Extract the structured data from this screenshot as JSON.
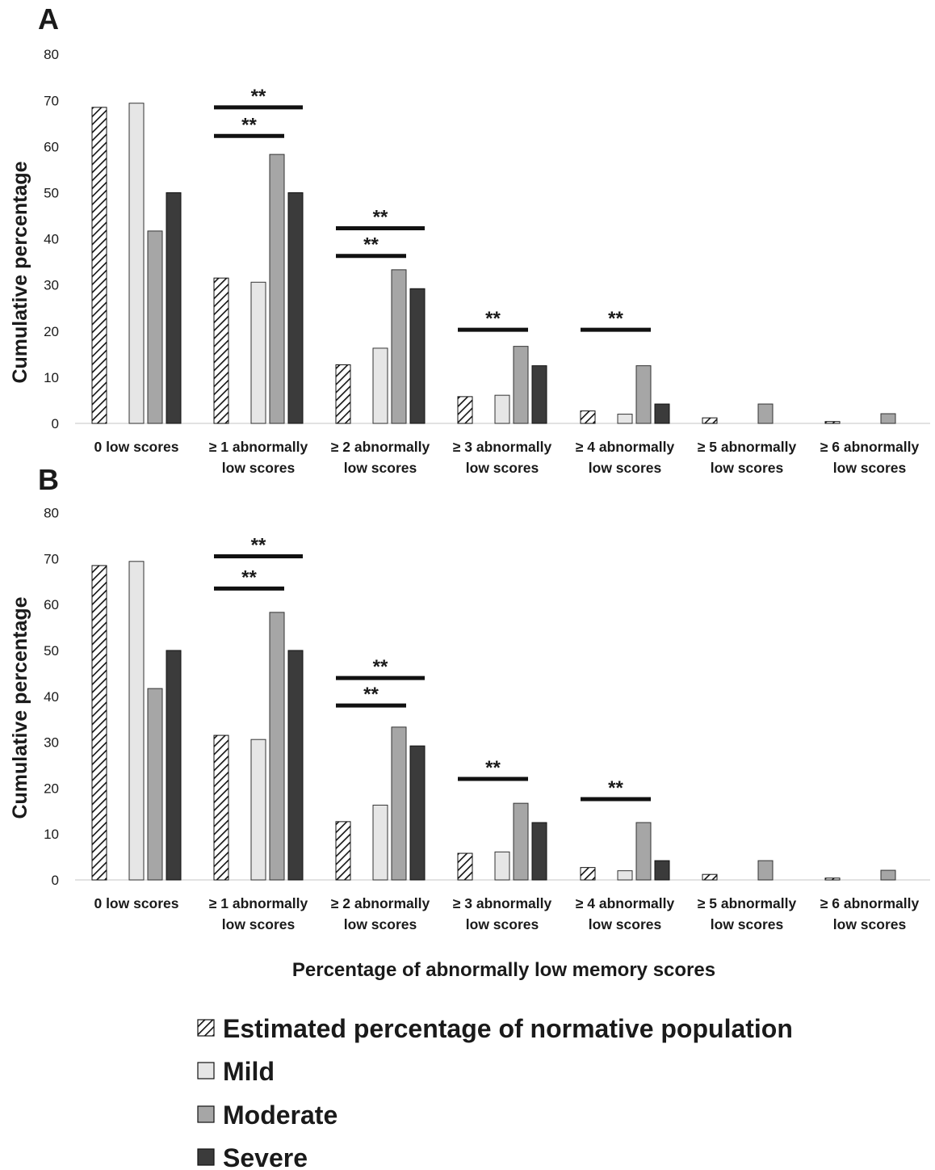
{
  "xlabel": "Percentage of abnormally low memory scores",
  "legend": [
    {
      "name": "Estimated percentage of normative population",
      "pattern": "hatch",
      "color": "#ffffff"
    },
    {
      "name": "Mild",
      "pattern": "solid",
      "color": "#e6e6e6"
    },
    {
      "name": "Moderate",
      "pattern": "solid",
      "color": "#a6a6a6"
    },
    {
      "name": "Severe",
      "pattern": "solid",
      "color": "#3b3b3b"
    }
  ],
  "chart_data": [
    {
      "type": "bar",
      "panel_label": "A",
      "ylabel": "Cumulative percentage",
      "ylim": [
        0,
        80
      ],
      "yticks": [
        0,
        10,
        20,
        30,
        40,
        50,
        60,
        70,
        80
      ],
      "categories": [
        [
          "0 low scores"
        ],
        [
          "≥ 1 abnormally",
          "low scores"
        ],
        [
          "≥ 2 abnormally",
          "low scores"
        ],
        [
          "≥ 3 abnormally",
          "low scores"
        ],
        [
          "≥ 4 abnormally",
          "low scores"
        ],
        [
          "≥ 5 abnormally",
          "low scores"
        ],
        [
          "≥ 6 abnormally",
          "low scores"
        ]
      ],
      "series": [
        {
          "name": "Estimated percentage of normative population",
          "values": [
            68.5,
            31.5,
            12.7,
            5.8,
            2.7,
            1.2,
            0.4
          ]
        },
        {
          "name": "Mild",
          "values": [
            69.4,
            30.6,
            16.3,
            6.1,
            2.0,
            0,
            0
          ]
        },
        {
          "name": "Moderate",
          "values": [
            41.7,
            58.3,
            33.3,
            16.7,
            12.5,
            4.2,
            2.1
          ]
        },
        {
          "name": "Severe",
          "values": [
            50.0,
            50.0,
            29.2,
            12.5,
            4.2,
            0,
            0
          ]
        }
      ],
      "significance": [
        {
          "category": 1,
          "from": 0,
          "to": 3,
          "y": 68.5,
          "label": "**"
        },
        {
          "category": 1,
          "from": 0,
          "to": 2,
          "y": 62.3,
          "label": "**"
        },
        {
          "category": 2,
          "from": 0,
          "to": 3,
          "y": 42.3,
          "label": "**"
        },
        {
          "category": 2,
          "from": 0,
          "to": 2,
          "y": 36.3,
          "label": "**"
        },
        {
          "category": 3,
          "from": 0,
          "to": 2,
          "y": 20.3,
          "label": "**"
        },
        {
          "category": 4,
          "from": 0,
          "to": 2,
          "y": 20.3,
          "label": "**"
        }
      ]
    },
    {
      "type": "bar",
      "panel_label": "B",
      "ylabel": "Cumulative percentage",
      "ylim": [
        0,
        80
      ],
      "yticks": [
        0,
        10,
        20,
        30,
        40,
        50,
        60,
        70,
        80
      ],
      "categories": [
        [
          "0 low scores"
        ],
        [
          "≥ 1 abnormally",
          "low scores"
        ],
        [
          "≥ 2 abnormally",
          "low scores"
        ],
        [
          "≥ 3 abnormally",
          "low scores"
        ],
        [
          "≥ 4 abnormally",
          "low scores"
        ],
        [
          "≥ 5 abnormally",
          "low scores"
        ],
        [
          "≥ 6 abnormally",
          "low scores"
        ]
      ],
      "series": [
        {
          "name": "Estimated percentage of normative population",
          "values": [
            68.5,
            31.5,
            12.7,
            5.8,
            2.7,
            1.2,
            0.4
          ]
        },
        {
          "name": "Mild",
          "values": [
            69.4,
            30.6,
            16.3,
            6.1,
            2.0,
            0,
            0
          ]
        },
        {
          "name": "Moderate",
          "values": [
            41.7,
            58.3,
            33.3,
            16.7,
            12.5,
            4.2,
            2.1
          ]
        },
        {
          "name": "Severe",
          "values": [
            50.0,
            50.0,
            29.2,
            12.5,
            4.2,
            0,
            0
          ]
        }
      ],
      "significance": [
        {
          "category": 1,
          "from": 0,
          "to": 3,
          "y": 70.5,
          "label": "**"
        },
        {
          "category": 1,
          "from": 0,
          "to": 2,
          "y": 63.5,
          "label": "**"
        },
        {
          "category": 2,
          "from": 0,
          "to": 3,
          "y": 44.0,
          "label": "**"
        },
        {
          "category": 2,
          "from": 0,
          "to": 2,
          "y": 38.0,
          "label": "**"
        },
        {
          "category": 3,
          "from": 0,
          "to": 2,
          "y": 22.0,
          "label": "**"
        },
        {
          "category": 4,
          "from": 0,
          "to": 2,
          "y": 17.6,
          "label": "**"
        }
      ]
    }
  ]
}
